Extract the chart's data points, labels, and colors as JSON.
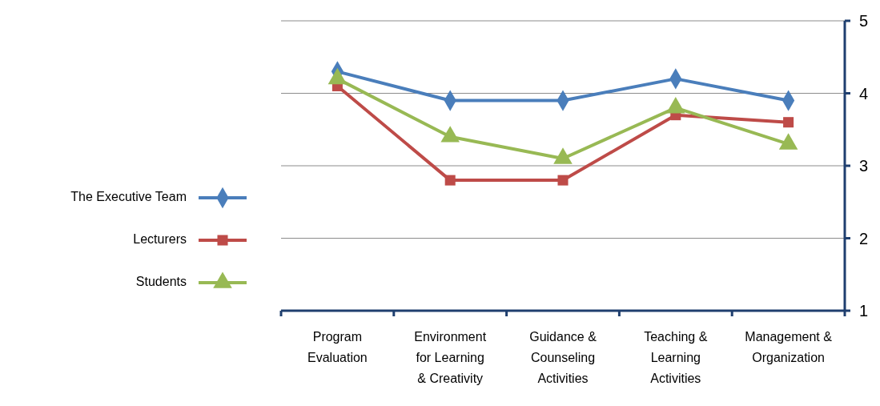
{
  "chart_data": {
    "type": "line",
    "categories": [
      "Program Evaluation",
      "Environment for Learning & Creativity",
      "Guidance & Counseling Activities",
      "Teaching & Learning Activities",
      "Management & Organization"
    ],
    "series": [
      {
        "name": "The Executive Team",
        "color": "#4a7ebb",
        "marker": "diamond",
        "values": [
          4.3,
          3.9,
          3.9,
          4.2,
          3.9
        ]
      },
      {
        "name": "Lecturers",
        "color": "#be4b48",
        "marker": "square",
        "values": [
          4.1,
          2.8,
          2.8,
          3.7,
          3.6
        ]
      },
      {
        "name": "Students",
        "color": "#98b954",
        "marker": "triangle",
        "values": [
          4.2,
          3.4,
          3.1,
          3.8,
          3.3
        ]
      }
    ],
    "ylim": [
      1,
      5
    ],
    "yticks": [
      1,
      2,
      3,
      4,
      5
    ],
    "grid": "y",
    "legend": "left",
    "line_style": "solid"
  }
}
